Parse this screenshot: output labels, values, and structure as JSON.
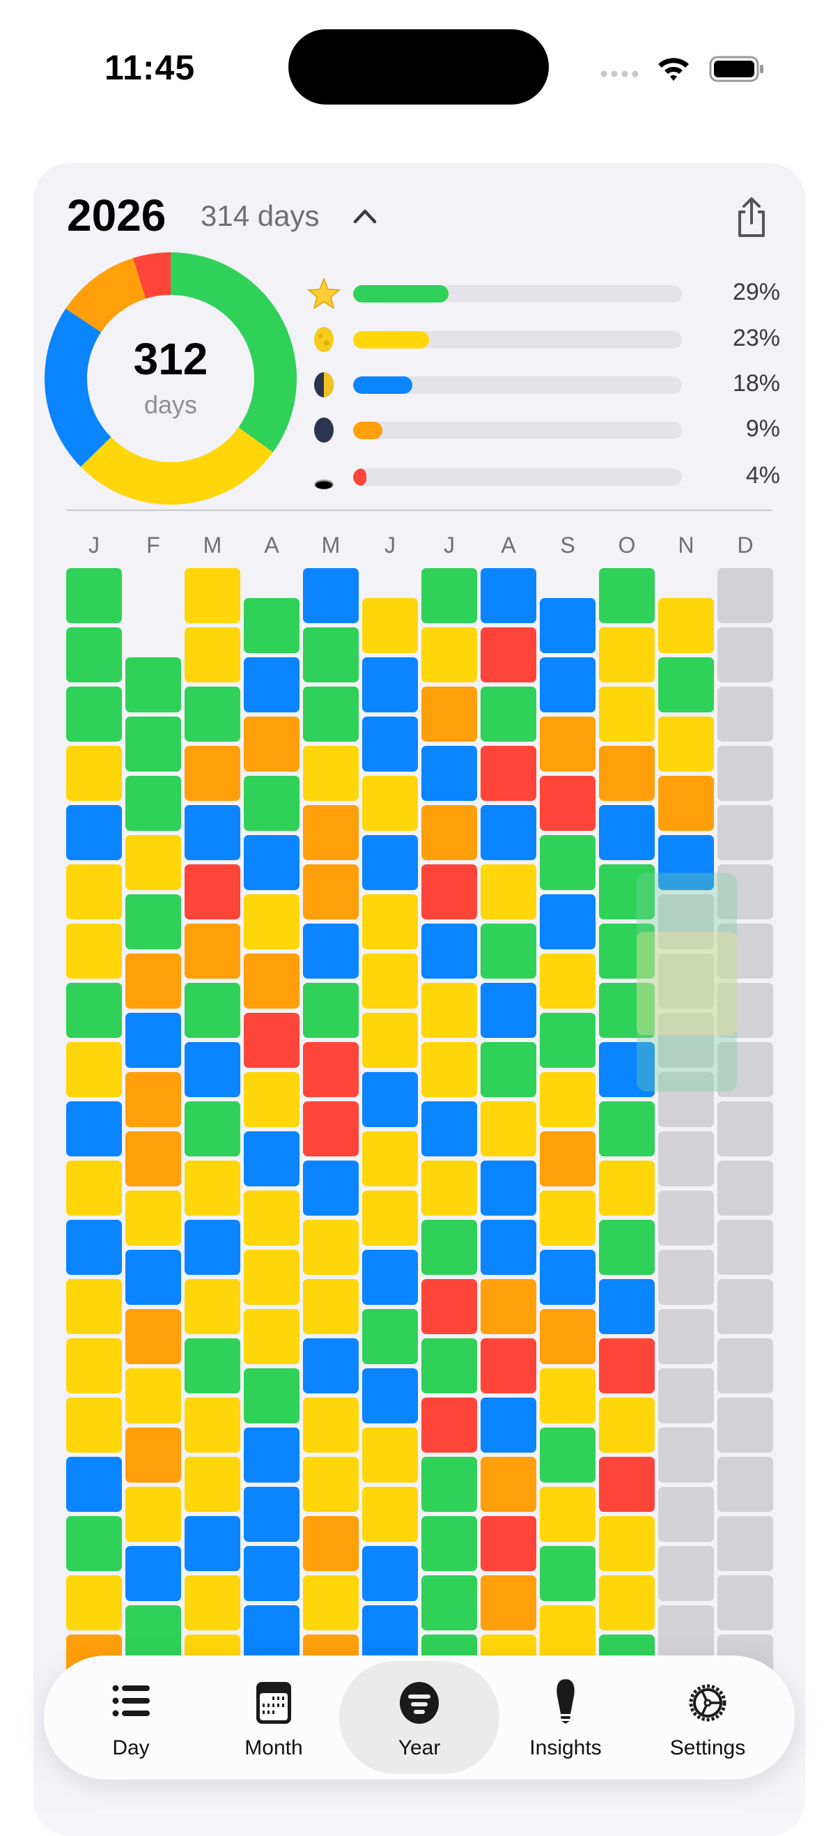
{
  "status_bar": {
    "time": "11:45",
    "icons": [
      "cellular-dots-icon",
      "wifi-icon",
      "battery-icon"
    ]
  },
  "header": {
    "year": "2026",
    "days_label": "314 days",
    "collapse_icon": "chevron-up-icon",
    "share_icon": "share-icon"
  },
  "summary": {
    "donut_value": "312",
    "donut_label": "days",
    "categories": [
      {
        "icon": "star-icon",
        "color": "#30d158",
        "percent": 29,
        "label": "29%"
      },
      {
        "icon": "full-moon-icon",
        "color": "#ffd60a",
        "percent": 23,
        "label": "23%"
      },
      {
        "icon": "half-moon-icon",
        "color": "#0a84ff",
        "percent": 18,
        "label": "18%"
      },
      {
        "icon": "new-moon-icon",
        "color": "#ff9f0a",
        "percent": 9,
        "label": "9%"
      },
      {
        "icon": "hole-icon",
        "color": "#ff453a",
        "percent": 4,
        "label": "4%"
      }
    ]
  },
  "grid": {
    "colors": {
      "G": "#30d158",
      "Y": "#ffd60a",
      "B": "#0a84ff",
      "O": "#ff9f0a",
      "R": "#ff453a",
      "X": "#d1d1d6"
    },
    "months": [
      {
        "label": "J",
        "days": "GGGYBYYGYBYBYYYBGYO"
      },
      {
        "label": "F",
        "days": "GGGYGOBOOYBOYOYBG"
      },
      {
        "label": "M",
        "days": "YYGOBROGBGYBYGYYBYY"
      },
      {
        "label": "A",
        "days": "GBOGBYORYBYYYGBBBB"
      },
      {
        "label": "M",
        "days": "BGGYOOBGRRBYYBYYOYO"
      },
      {
        "label": "J",
        "days": "YBBYBYYYBYYBGBYYBB"
      },
      {
        "label": "J",
        "days": "GYOBORBYYBYGRGRGGGG"
      },
      {
        "label": "A",
        "days": "BRGRBYGBGYBBORBOROYG"
      },
      {
        "label": "S",
        "days": "BBORGBYGYOYBOYGYGY"
      },
      {
        "label": "O",
        "days": "GYYOBGGGBGYGBRYRYYG"
      },
      {
        "label": "N",
        "days": "YGYOBXXXXXXXXXXXXX"
      },
      {
        "label": "D",
        "days": "XXXXXXXXXXXXXXXXXXX"
      }
    ]
  },
  "tabs": [
    {
      "label": "Day",
      "icon": "list-icon",
      "active": false
    },
    {
      "label": "Month",
      "icon": "calendar-icon",
      "active": false
    },
    {
      "label": "Year",
      "icon": "year-filter-icon",
      "active": true
    },
    {
      "label": "Insights",
      "icon": "lightbulb-icon",
      "active": false
    },
    {
      "label": "Settings",
      "icon": "gear-icon",
      "active": false
    }
  ]
}
